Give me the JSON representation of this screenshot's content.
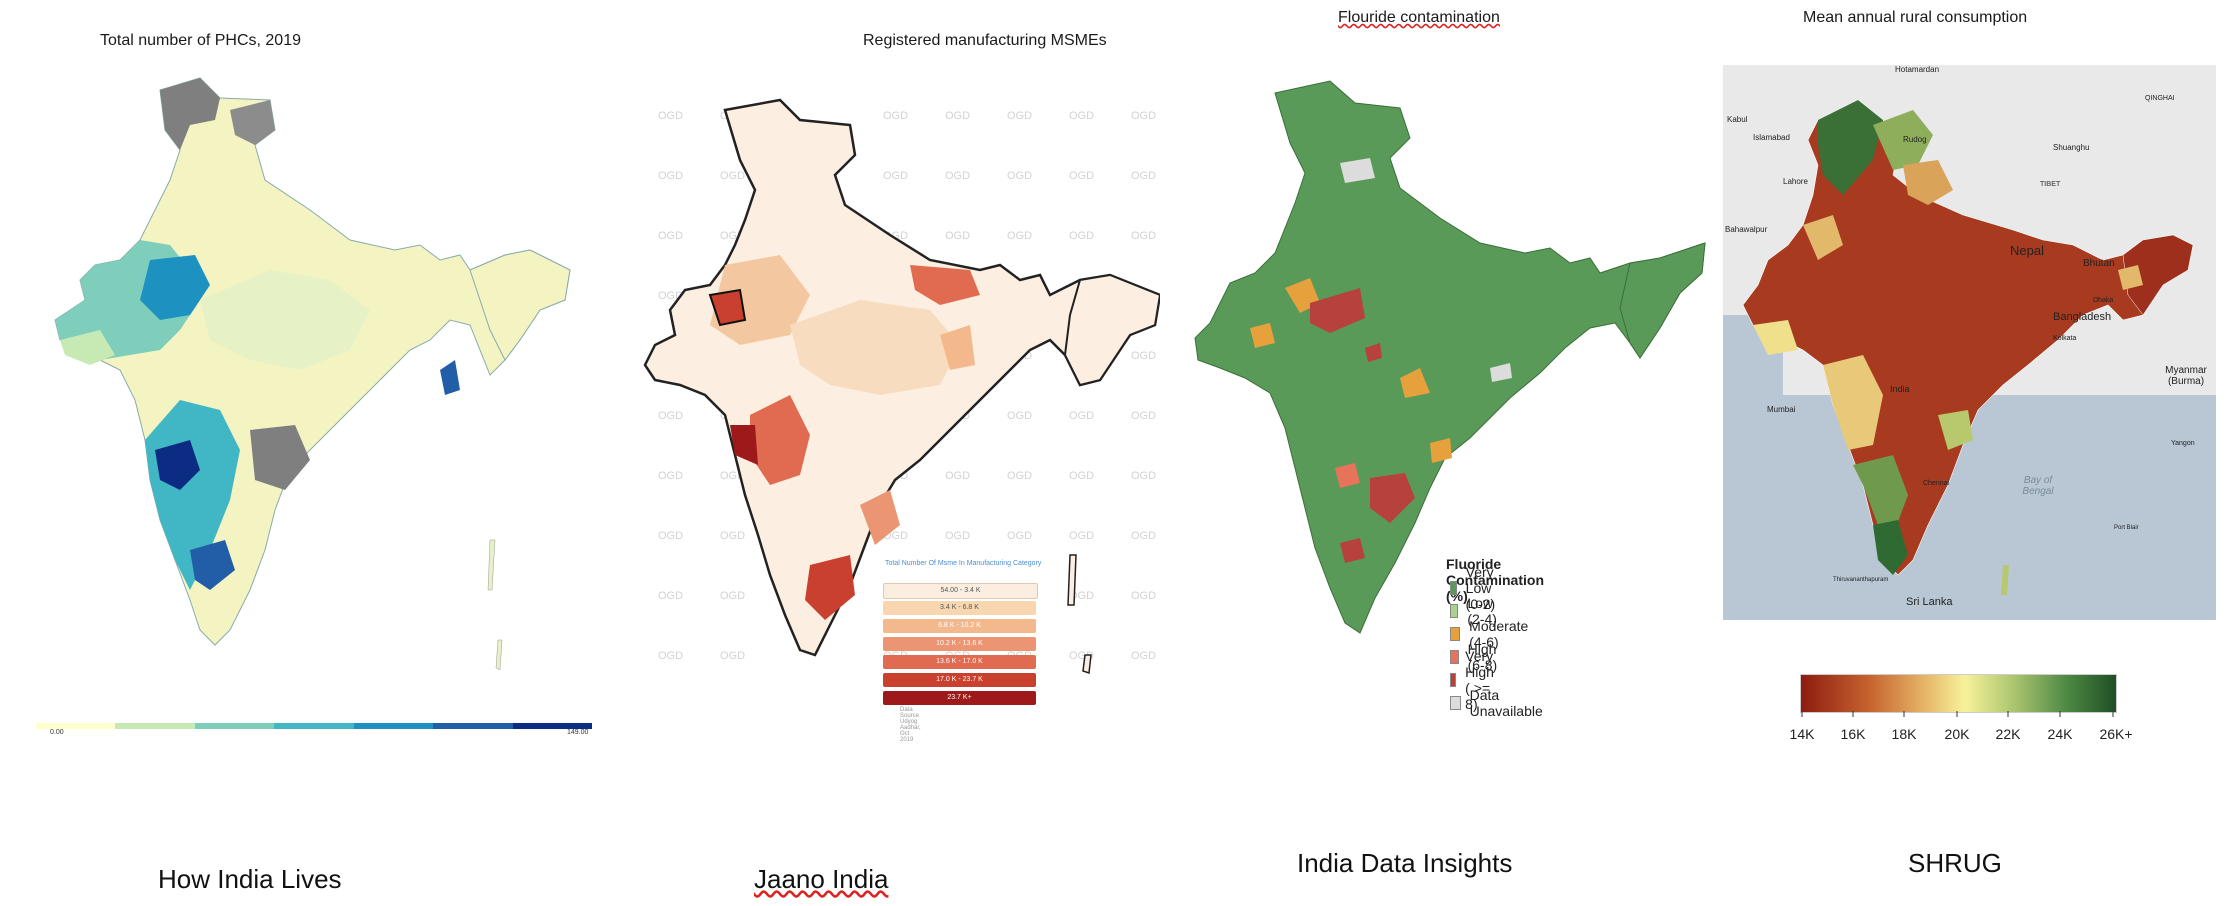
{
  "panels": [
    {
      "title": "Total number of PHCs, 2019",
      "caption": "How India Lives",
      "legend": {
        "min_label": "0.00",
        "max_label": "149.00",
        "colors": [
          "#ffffcc",
          "#c7e9b4",
          "#7fcdbb",
          "#41b6c4",
          "#1d91c0",
          "#225ea8",
          "#0c2c84"
        ]
      }
    },
    {
      "title": "Registered manufacturing MSMEs",
      "caption": "Jaano India",
      "legend": {
        "title": "Total Number Of Msme In Manufacturing Category",
        "items": [
          {
            "label": "54.00 - 3.4 K",
            "color": "#fbeee0"
          },
          {
            "label": "3.4 K - 6.8 K",
            "color": "#f7d6b0"
          },
          {
            "label": "6.8 K - 10.2 K",
            "color": "#f3b98d"
          },
          {
            "label": "10.2 K - 13.6 K",
            "color": "#ec9572"
          },
          {
            "label": "13.6 K - 17.0 K",
            "color": "#e06b50"
          },
          {
            "label": "17.0 K - 23.7 K",
            "color": "#c9402f"
          },
          {
            "label": "23.7 K+",
            "color": "#9e1a1a"
          }
        ],
        "source": "Data Source Udyog Aadhar, Oct 2019"
      },
      "watermark": "OGD"
    },
    {
      "title": "Flouride contamination",
      "caption": "India Data Insights",
      "legend": {
        "title": "Fluoride Contamination (%)",
        "items": [
          {
            "label": "Very Low (0-2)",
            "color": "#5a9a58"
          },
          {
            "label": "Low (2-4)",
            "color": "#a9d38c"
          },
          {
            "label": "Moderate (4-6)",
            "color": "#e6a13c"
          },
          {
            "label": "High (6-8)",
            "color": "#e7745a"
          },
          {
            "label": "Very High ( >= 8)",
            "color": "#b7413b"
          },
          {
            "label": "Data Unavailable",
            "color": "#dcdcdc"
          }
        ]
      }
    },
    {
      "title": "Mean annual rural consumption",
      "caption": "SHRUG",
      "legend": {
        "ticks": [
          "14K",
          "16K",
          "18K",
          "20K",
          "22K",
          "24K",
          "26K+"
        ],
        "gradient": [
          "#8e1b10",
          "#c7642f",
          "#e7b96a",
          "#f7f29a",
          "#a9c46e",
          "#4f8a45",
          "#1f4f24"
        ]
      },
      "places": [
        "Hotamardan",
        "QINGHAI",
        "Kabul",
        "Islamabad",
        "Lahore",
        "Rudog",
        "Shuanghu",
        "TIBET",
        "Bahawalpur",
        "Nepal",
        "Bhutan",
        "Bangladesh",
        "Mumbai",
        "India",
        "Myanmar (Burma)",
        "Yangon",
        "Bay of Bengal",
        "Sri Lanka",
        "Thiruvananthapuram",
        "Port Blair",
        "Chennai",
        "Kolkata",
        "Dhaka"
      ]
    }
  ]
}
